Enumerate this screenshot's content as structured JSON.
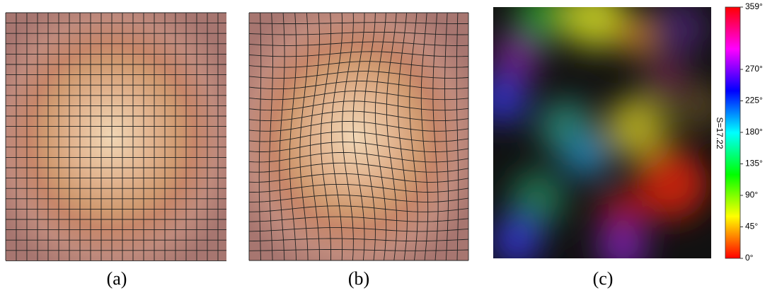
{
  "captions": [
    "(a)",
    "(b)",
    "(c)"
  ],
  "colorbar": {
    "label": "S=17.22",
    "lim": [
      0,
      359
    ],
    "ticks": [
      {
        "value": 0,
        "label": "0°"
      },
      {
        "value": 45,
        "label": "45°"
      },
      {
        "value": 90,
        "label": "90°"
      },
      {
        "value": 135,
        "label": "135°"
      },
      {
        "value": 180,
        "label": "180°"
      },
      {
        "value": 225,
        "label": "225°"
      },
      {
        "value": 270,
        "label": "270°"
      },
      {
        "value": 359,
        "label": "359°"
      }
    ]
  }
}
